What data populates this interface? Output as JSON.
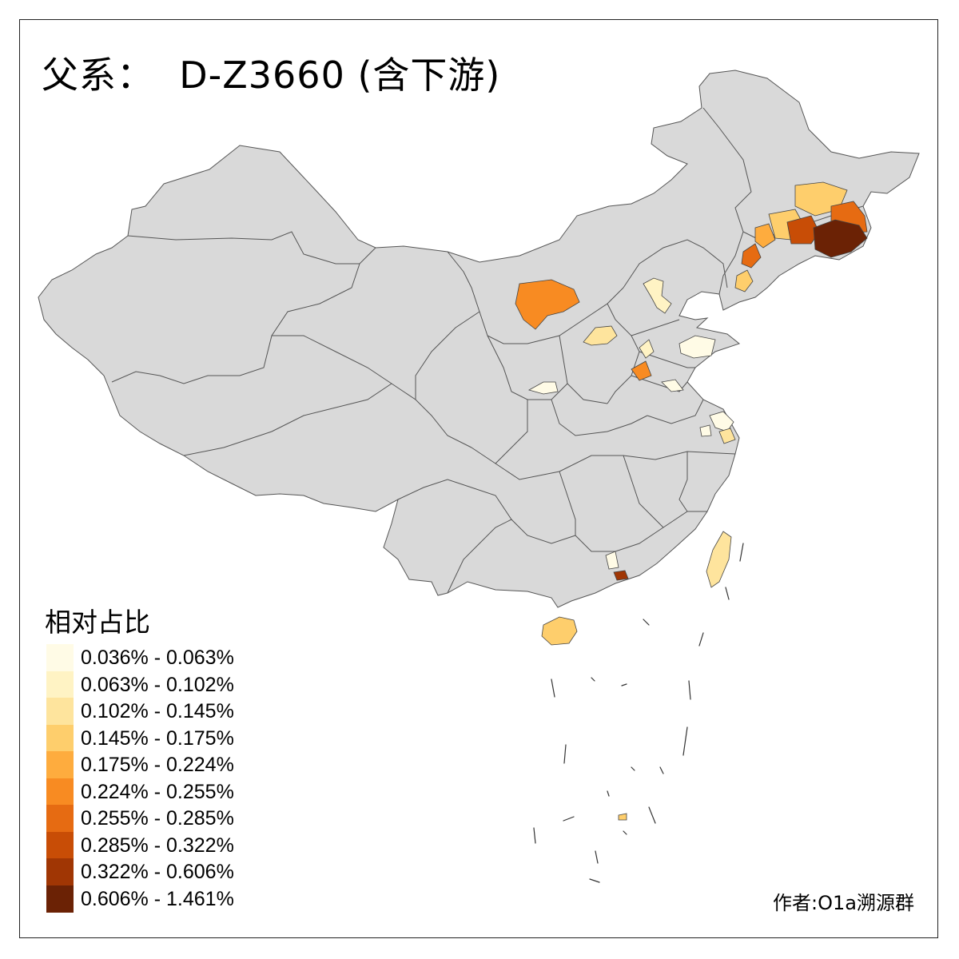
{
  "title": "父系：  D-Z3660 (含下游)",
  "legend": {
    "title": "相对占比",
    "items": [
      {
        "label": "0.036% - 0.063%",
        "color": "#fffbe6"
      },
      {
        "label": "0.063% - 0.102%",
        "color": "#fff3c4"
      },
      {
        "label": "0.102% - 0.145%",
        "color": "#fee49d"
      },
      {
        "label": "0.145% - 0.175%",
        "color": "#fece6c"
      },
      {
        "label": "0.175% - 0.224%",
        "color": "#feac3e"
      },
      {
        "label": "0.224% - 0.255%",
        "color": "#f88b22"
      },
      {
        "label": "0.255% - 0.285%",
        "color": "#e66b12"
      },
      {
        "label": "0.285% - 0.322%",
        "color": "#c84d06"
      },
      {
        "label": "0.322% - 0.606%",
        "color": "#a03604"
      },
      {
        "label": "0.606% - 1.461%",
        "color": "#6b2205"
      }
    ]
  },
  "colors": {
    "land": "#d9d9d9",
    "border": "#555555"
  },
  "credit": "作者:O1a溯源群"
}
